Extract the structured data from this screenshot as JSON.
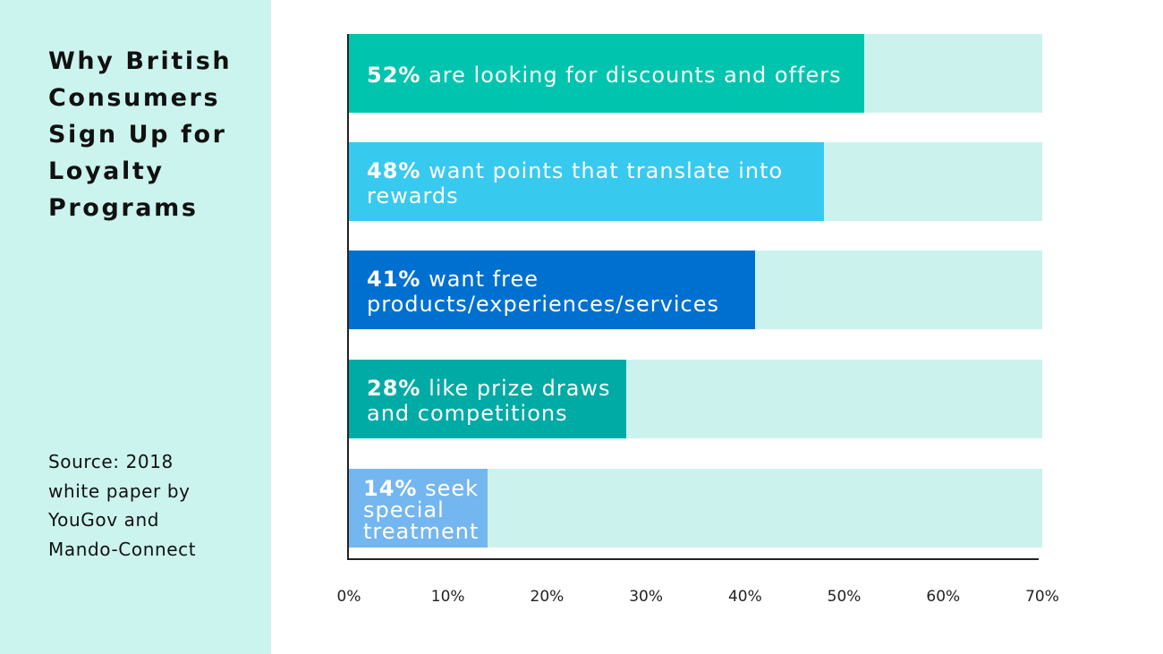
{
  "sidebar": {
    "title": "Why British Consumers Sign Up for Loyalty Programs",
    "source": "Source: 2018 white paper by YouGov and Mando-Connect",
    "background_color": "#ccf4ee"
  },
  "chart_data": {
    "type": "bar",
    "orientation": "horizontal",
    "title": "Why British Consumers Sign Up for Loyalty Programs",
    "xlim": [
      0,
      70
    ],
    "x_ticks": [
      "0%",
      "10%",
      "20%",
      "30%",
      "40%",
      "50%",
      "60%",
      "70%"
    ],
    "track_color": "#ccf2ee",
    "bars": [
      {
        "value": 52,
        "pct": "52%",
        "text": "are looking for discounts and offers",
        "color": "#00c4ad"
      },
      {
        "value": 48,
        "pct": "48%",
        "text": "want points that translate into rewards",
        "color": "#38c9ef"
      },
      {
        "value": 41,
        "pct": "41%",
        "text": "want free products/experiences/services",
        "color": "#0070d0"
      },
      {
        "value": 28,
        "pct": "28%",
        "text": "like prize draws and competitions",
        "color": "#00aaa5"
      },
      {
        "value": 14,
        "pct": "14%",
        "text": "seek special treatment",
        "color": "#74b6ef"
      }
    ]
  }
}
